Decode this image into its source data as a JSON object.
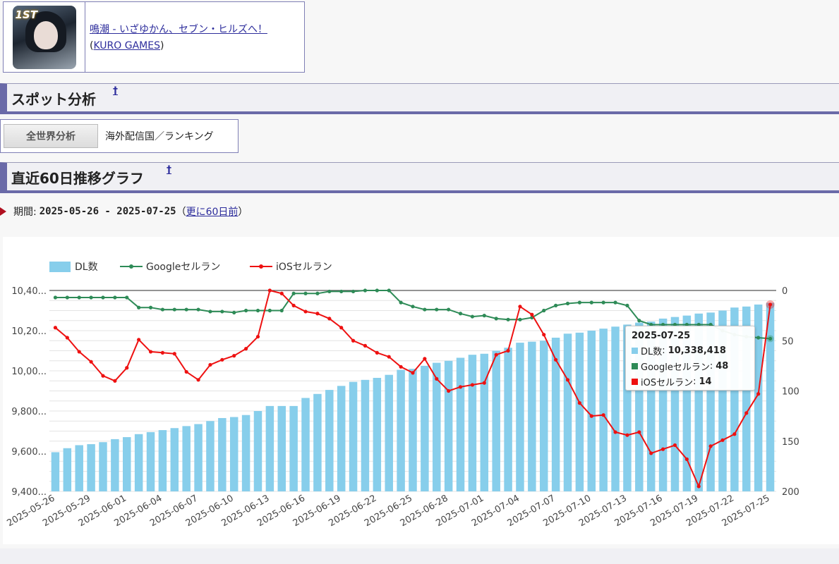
{
  "app": {
    "icon_badge": "1ST",
    "title": "鳴潮 - いざゆかん、セブン・ヒルズへ！",
    "publisher_open": "(",
    "publisher": "KURO GAMES",
    "publisher_close": ")"
  },
  "spot": {
    "title": "スポット分析",
    "sup": "†"
  },
  "tabs": {
    "button_label": "全世界分析",
    "label": "海外配信国／ランキング"
  },
  "trend": {
    "title": "直近60日推移グラフ",
    "sup": "†"
  },
  "period": {
    "label": "期間:",
    "value": "2025-05-26 - 2025-07-25",
    "paren_open": "（",
    "more_link": "更に60日前",
    "paren_close": "）"
  },
  "tooltip": {
    "date": "2025-07-25",
    "rows": [
      {
        "name": "DL数",
        "value": "10,338,418"
      },
      {
        "name": "Googleセルラン",
        "value": "48"
      },
      {
        "name": "iOSセルラン",
        "value": "14"
      }
    ]
  },
  "colors": {
    "bar": "#87CEEB",
    "google": "#2E8B57",
    "ios": "#EE1111"
  },
  "chart_data": {
    "type": "bar+line",
    "legend": [
      "DL数",
      "Googleセルラン",
      "iOSセルラン"
    ],
    "legend_placement": "top-left",
    "left_axis": {
      "ylim": [
        9400000,
        10400000
      ],
      "ticks": [
        "9,400...",
        "9,600...",
        "9,800...",
        "10,00...",
        "10,20...",
        "10,40..."
      ]
    },
    "right_axis": {
      "ylim": [
        0,
        200
      ],
      "reversed": true,
      "ticks": [
        "0",
        "50",
        "100",
        "150",
        "200"
      ]
    },
    "x_ticks": [
      "2025-05-26",
      "2025-05-29",
      "2025-06-01",
      "2025-06-04",
      "2025-06-07",
      "2025-06-10",
      "2025-06-13",
      "2025-06-16",
      "2025-06-19",
      "2025-06-22",
      "2025-06-25",
      "2025-06-28",
      "2025-07-01",
      "2025-07-04",
      "2025-07-07",
      "2025-07-10",
      "2025-07-13",
      "2025-07-16",
      "2025-07-19",
      "2025-07-22",
      "2025-07-25"
    ],
    "dl": [
      9595000,
      9615000,
      9630000,
      9635000,
      9645000,
      9660000,
      9670000,
      9685000,
      9695000,
      9705000,
      9715000,
      9725000,
      9735000,
      9750000,
      9765000,
      9770000,
      9780000,
      9800000,
      9825000,
      9825000,
      9825000,
      9865000,
      9885000,
      9905000,
      9925000,
      9945000,
      9955000,
      9965000,
      9980000,
      10005000,
      10010000,
      10025000,
      10040000,
      10050000,
      10065000,
      10080000,
      10085000,
      10100000,
      10115000,
      10140000,
      10145000,
      10150000,
      10165000,
      10185000,
      10190000,
      10200000,
      10210000,
      10220000,
      10230000,
      10240000,
      10245000,
      10260000,
      10268000,
      10275000,
      10285000,
      10290000,
      10300000,
      10315000,
      10320000,
      10330000,
      10338418
    ],
    "google": [
      7,
      7,
      7,
      7,
      7,
      7,
      7,
      17,
      17,
      19,
      19,
      19,
      19,
      21,
      21,
      22,
      20,
      20,
      20,
      20,
      3,
      3,
      3,
      1,
      1,
      1,
      0,
      0,
      0,
      12,
      16,
      19,
      19,
      19,
      23,
      26,
      25,
      28,
      29,
      29,
      27,
      20,
      15,
      13,
      12,
      12,
      12,
      12,
      15,
      30,
      34,
      34,
      34,
      34,
      34,
      34,
      40,
      44,
      46,
      47,
      48
    ],
    "ios": [
      37,
      47,
      61,
      71,
      85,
      90,
      77,
      49,
      61,
      62,
      63,
      81,
      89,
      74,
      69,
      65,
      58,
      46,
      0,
      3,
      15,
      21,
      23,
      28,
      37,
      50,
      55,
      62,
      66,
      76,
      82,
      68,
      88,
      100,
      96,
      94,
      92,
      64,
      60,
      16,
      24,
      44,
      69,
      89,
      112,
      125,
      124,
      141,
      144,
      141,
      162,
      158,
      154,
      168,
      195,
      155,
      149,
      143,
      122,
      103,
      14
    ]
  }
}
